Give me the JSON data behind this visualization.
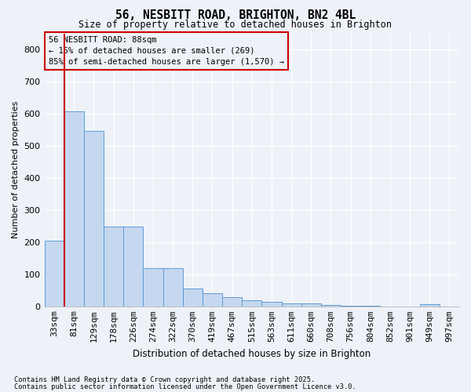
{
  "title1": "56, NESBITT ROAD, BRIGHTON, BN2 4BL",
  "title2": "Size of property relative to detached houses in Brighton",
  "xlabel": "Distribution of detached houses by size in Brighton",
  "ylabel": "Number of detached properties",
  "bar_labels": [
    "33sqm",
    "81sqm",
    "129sqm",
    "178sqm",
    "226sqm",
    "274sqm",
    "322sqm",
    "370sqm",
    "419sqm",
    "467sqm",
    "515sqm",
    "563sqm",
    "611sqm",
    "660sqm",
    "708sqm",
    "756sqm",
    "804sqm",
    "852sqm",
    "901sqm",
    "949sqm",
    "997sqm"
  ],
  "bar_values": [
    205,
    608,
    545,
    248,
    248,
    120,
    120,
    55,
    40,
    28,
    18,
    14,
    10,
    10,
    4,
    1,
    1,
    0,
    0,
    8,
    0
  ],
  "bar_color": "#c5d8ef",
  "bar_edgecolor": "#5b9bd5",
  "vline_color": "#cc0000",
  "annotation_title": "56 NESBITT ROAD: 88sqm",
  "annotation_line1": "← 15% of detached houses are smaller (269)",
  "annotation_line2": "85% of semi-detached houses are larger (1,570) →",
  "annotation_box_color": "#cc0000",
  "ylim": [
    0,
    850
  ],
  "yticks": [
    0,
    100,
    200,
    300,
    400,
    500,
    600,
    700,
    800
  ],
  "footer1": "Contains HM Land Registry data © Crown copyright and database right 2025.",
  "footer2": "Contains public sector information licensed under the Open Government Licence v3.0.",
  "bg_color": "#eef2f8",
  "grid_color": "#ffffff"
}
